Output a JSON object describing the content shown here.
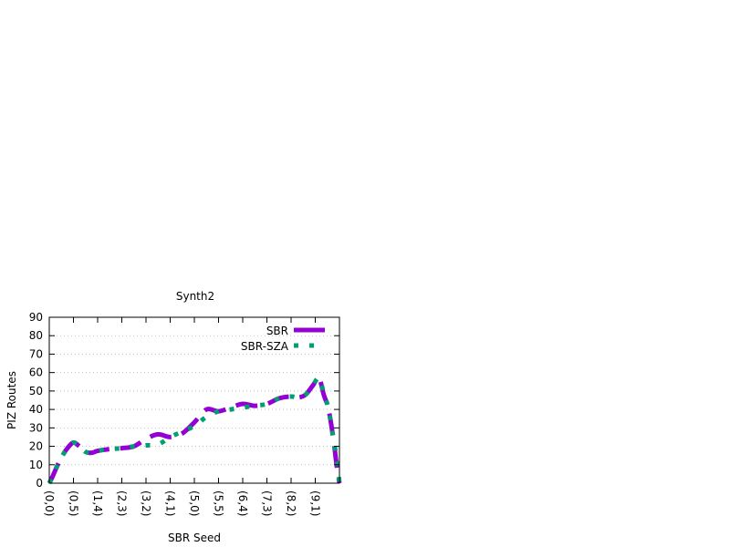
{
  "chart_data": {
    "type": "line",
    "title": "Synth2",
    "xlabel": "SBR Seed",
    "ylabel": "PIZ Routes",
    "ylim": [
      0,
      90
    ],
    "yticks": [
      0,
      10,
      20,
      30,
      40,
      50,
      60,
      70,
      80,
      90
    ],
    "grid": true,
    "legend_position": "top-right",
    "categories": [
      "(0,0)",
      "(0,5)",
      "(1,4)",
      "(2,3)",
      "(3,2)",
      "(4,1)",
      "(5,0)",
      "(5,5)",
      "(6,4)",
      "(7,3)",
      "(8,2)",
      "(9,1)"
    ],
    "x_positions": [
      0,
      1,
      2,
      3,
      4,
      5,
      6,
      7,
      8,
      9,
      10,
      11
    ],
    "xlim": [
      0,
      12
    ],
    "series": [
      {
        "name": "SBR",
        "color": "#9400d3",
        "style": "dashed-thick",
        "x": [
          0.0,
          0.15,
          0.35,
          0.55,
          0.75,
          1.0,
          1.25,
          1.5,
          1.75,
          2.0,
          2.5,
          3.0,
          3.5,
          4.0,
          4.5,
          5.0,
          5.5,
          6.0,
          6.5,
          7.0,
          7.5,
          8.0,
          8.5,
          9.0,
          9.5,
          10.0,
          10.3,
          10.6,
          10.9,
          11.15,
          11.35,
          11.55,
          11.75,
          11.9,
          12.0
        ],
        "y": [
          0,
          4,
          10,
          15,
          19,
          22,
          20,
          17,
          16.5,
          17.5,
          18.5,
          19,
          20,
          24,
          26.5,
          25,
          27,
          33,
          40,
          39,
          41,
          43,
          42,
          43,
          46,
          47,
          46.5,
          48,
          53,
          57,
          48,
          40,
          24,
          8,
          0
        ]
      },
      {
        "name": "SBR-SZA",
        "color": "#009e73",
        "style": "dotted-thick",
        "x": [
          0.0,
          0.15,
          0.35,
          0.55,
          0.75,
          1.0,
          1.25,
          1.5,
          1.75,
          2.0,
          2.5,
          3.0,
          3.5,
          4.0,
          4.5,
          5.0,
          5.5,
          6.0,
          6.5,
          7.0,
          7.5,
          8.0,
          8.5,
          9.0,
          9.5,
          10.0,
          10.3,
          10.6,
          10.9,
          11.15,
          11.35,
          11.55,
          11.75,
          11.9,
          12.0
        ],
        "y": [
          0,
          4,
          10,
          15,
          19,
          22,
          20,
          17,
          16.5,
          17.5,
          18.5,
          19,
          20,
          20.5,
          21,
          25,
          28,
          31,
          36,
          39,
          40,
          41,
          42,
          43,
          46,
          47,
          46.5,
          48,
          53,
          57,
          49,
          40,
          24,
          12,
          0
        ]
      }
    ]
  }
}
